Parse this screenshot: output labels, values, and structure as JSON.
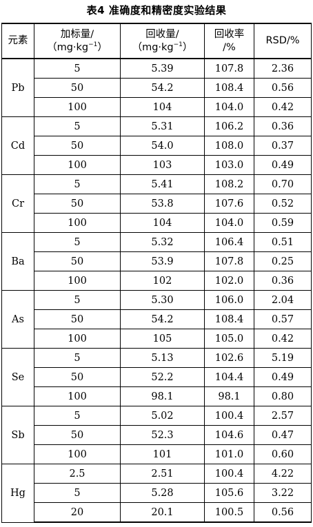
{
  "caption": "表4  准确度和精密度实验结果",
  "headers": {
    "element": "元素",
    "added_line1": "加标量/",
    "added_line2": "（mg·kg",
    "added_sup": "−1",
    "added_close": "）",
    "found_line1": "回收量/",
    "found_line2": "（mg·kg",
    "found_sup": "−1",
    "found_close": "）",
    "recovery_line1": "回收率",
    "recovery_line2": "/%",
    "rsd": "RSD/%"
  },
  "groups": [
    {
      "element": "Pb",
      "rows": [
        {
          "added": "5",
          "found": "5.39",
          "recovery": "107.8",
          "rsd": "2.36"
        },
        {
          "added": "50",
          "found": "54.2",
          "recovery": "108.4",
          "rsd": "0.56"
        },
        {
          "added": "100",
          "found": "104",
          "recovery": "104.0",
          "rsd": "0.42"
        }
      ]
    },
    {
      "element": "Cd",
      "rows": [
        {
          "added": "5",
          "found": "5.31",
          "recovery": "106.2",
          "rsd": "0.36"
        },
        {
          "added": "50",
          "found": "54.0",
          "recovery": "108.0",
          "rsd": "0.37"
        },
        {
          "added": "100",
          "found": "103",
          "recovery": "103.0",
          "rsd": "0.49"
        }
      ]
    },
    {
      "element": "Cr",
      "rows": [
        {
          "added": "5",
          "found": "5.41",
          "recovery": "108.2",
          "rsd": "0.70"
        },
        {
          "added": "50",
          "found": "53.8",
          "recovery": "107.6",
          "rsd": "0.52"
        },
        {
          "added": "100",
          "found": "104",
          "recovery": "104.0",
          "rsd": "0.59"
        }
      ]
    },
    {
      "element": "Ba",
      "rows": [
        {
          "added": "5",
          "found": "5.32",
          "recovery": "106.4",
          "rsd": "0.51"
        },
        {
          "added": "50",
          "found": "53.9",
          "recovery": "107.8",
          "rsd": "0.25"
        },
        {
          "added": "100",
          "found": "102",
          "recovery": "102.0",
          "rsd": "0.36"
        }
      ]
    },
    {
      "element": "As",
      "rows": [
        {
          "added": "5",
          "found": "5.30",
          "recovery": "106.0",
          "rsd": "2.04"
        },
        {
          "added": "50",
          "found": "54.2",
          "recovery": "108.4",
          "rsd": "0.57"
        },
        {
          "added": "100",
          "found": "105",
          "recovery": "105.0",
          "rsd": "0.42"
        }
      ]
    },
    {
      "element": "Se",
      "rows": [
        {
          "added": "5",
          "found": "5.13",
          "recovery": "102.6",
          "rsd": "5.19"
        },
        {
          "added": "50",
          "found": "52.2",
          "recovery": "104.4",
          "rsd": "0.49"
        },
        {
          "added": "100",
          "found": "98.1",
          "recovery": "98.1",
          "rsd": "0.80"
        }
      ]
    },
    {
      "element": "Sb",
      "rows": [
        {
          "added": "5",
          "found": "5.02",
          "recovery": "100.4",
          "rsd": "2.57"
        },
        {
          "added": "50",
          "found": "52.3",
          "recovery": "104.6",
          "rsd": "0.47"
        },
        {
          "added": "100",
          "found": "101",
          "recovery": "101.0",
          "rsd": "0.60"
        }
      ]
    },
    {
      "element": "Hg",
      "rows": [
        {
          "added": "2.5",
          "found": "2.51",
          "recovery": "100.4",
          "rsd": "4.22"
        },
        {
          "added": "5",
          "found": "5.28",
          "recovery": "105.6",
          "rsd": "3.22"
        },
        {
          "added": "20",
          "found": "20.1",
          "recovery": "100.5",
          "rsd": "0.56"
        }
      ]
    }
  ]
}
